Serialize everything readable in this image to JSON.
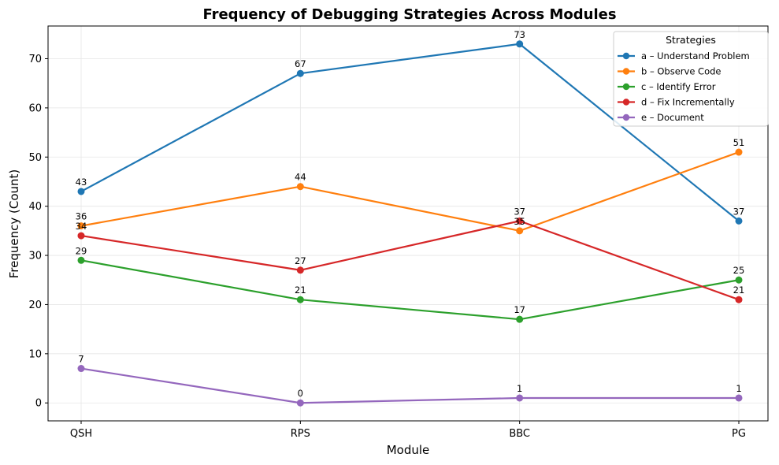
{
  "chart_data": {
    "type": "line",
    "title": "Frequency of Debugging Strategies Across Modules",
    "xlabel": "Module",
    "ylabel": "Frequency (Count)",
    "categories": [
      "QSH",
      "RPS",
      "BBC",
      "PG"
    ],
    "ylim": [
      -3.65,
      76.65
    ],
    "yticks": [
      0,
      10,
      20,
      30,
      40,
      50,
      60,
      70
    ],
    "grid": true,
    "legend": {
      "title": "Strategies",
      "placement": "top-right"
    },
    "series": [
      {
        "name": "a – Understand Problem",
        "color": "#1f77b4",
        "values": [
          43,
          67,
          73,
          37
        ]
      },
      {
        "name": "b – Observe Code",
        "color": "#ff7f0e",
        "values": [
          36,
          44,
          35,
          51
        ]
      },
      {
        "name": "c – Identify Error",
        "color": "#2ca02c",
        "values": [
          29,
          21,
          17,
          25
        ]
      },
      {
        "name": "d – Fix Incrementally",
        "color": "#d62728",
        "values": [
          34,
          27,
          37,
          21
        ]
      },
      {
        "name": "e – Document",
        "color": "#9467bd",
        "values": [
          7,
          0,
          1,
          1
        ]
      }
    ]
  }
}
